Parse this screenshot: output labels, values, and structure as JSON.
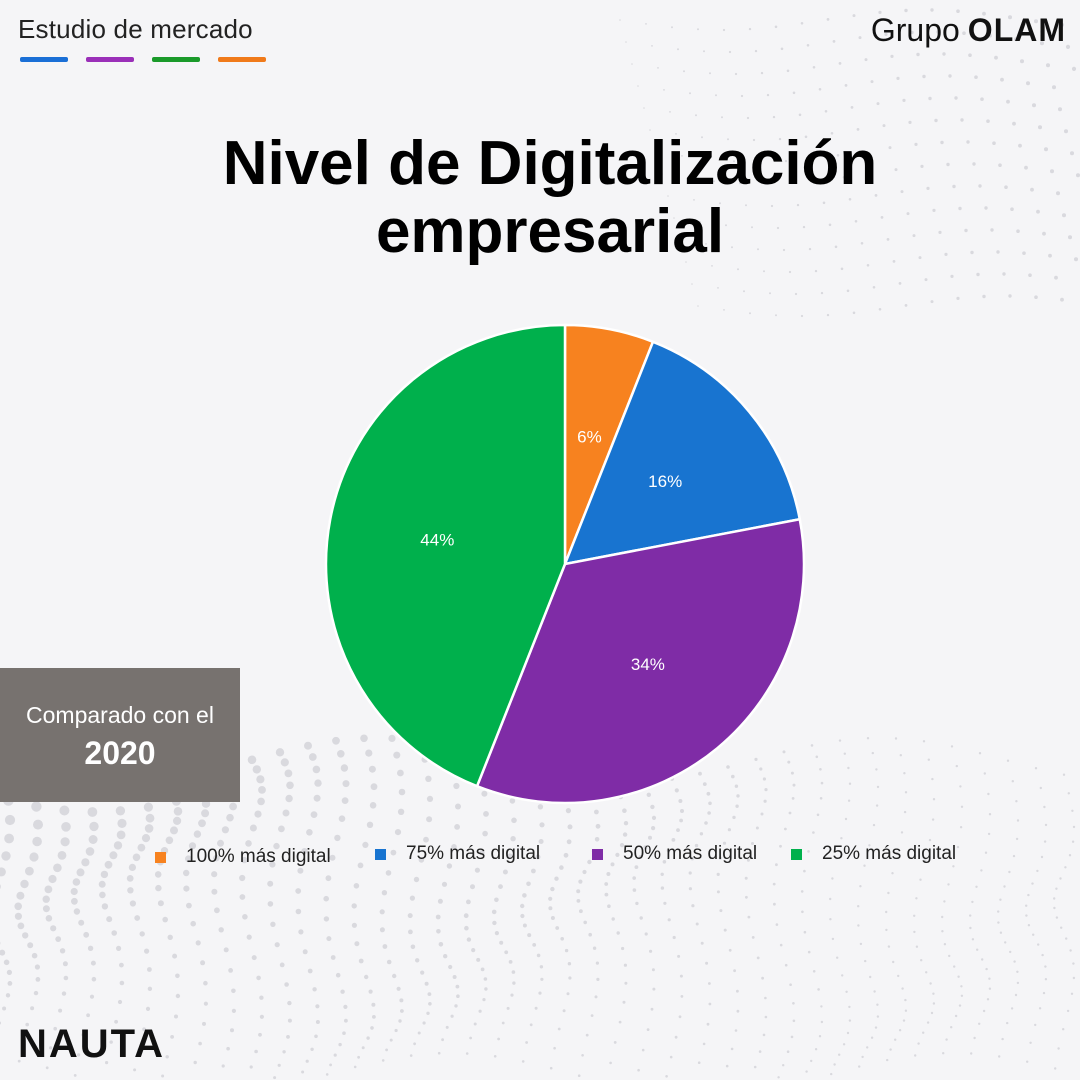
{
  "header": {
    "label": "Estudio de mercado",
    "accent_colors": [
      "#1a6fd6",
      "#9a2fb8",
      "#1a9a2a",
      "#f07a1a"
    ]
  },
  "brand": {
    "prefix": "Grupo",
    "name": "OLAM"
  },
  "title": {
    "line1": "Nivel de Digitalización",
    "line2": "empresarial"
  },
  "chart_data": {
    "type": "pie",
    "title": "Nivel de Digitalización empresarial",
    "slices": [
      {
        "label": "100% más digital",
        "value": 6,
        "display": "6%",
        "color": "#f7821f"
      },
      {
        "label": "75% más digital",
        "value": 16,
        "display": "16%",
        "color": "#1874d0"
      },
      {
        "label": "50% más digital",
        "value": 34,
        "display": "34%",
        "color": "#7f2ca6"
      },
      {
        "label": "25% más digital",
        "value": 44,
        "display": "44%",
        "color": "#00b04c"
      }
    ],
    "legend_position": "bottom"
  },
  "comparison": {
    "text": "Comparado con el",
    "year": "2020"
  },
  "footer": {
    "logo": "NAUTA"
  }
}
